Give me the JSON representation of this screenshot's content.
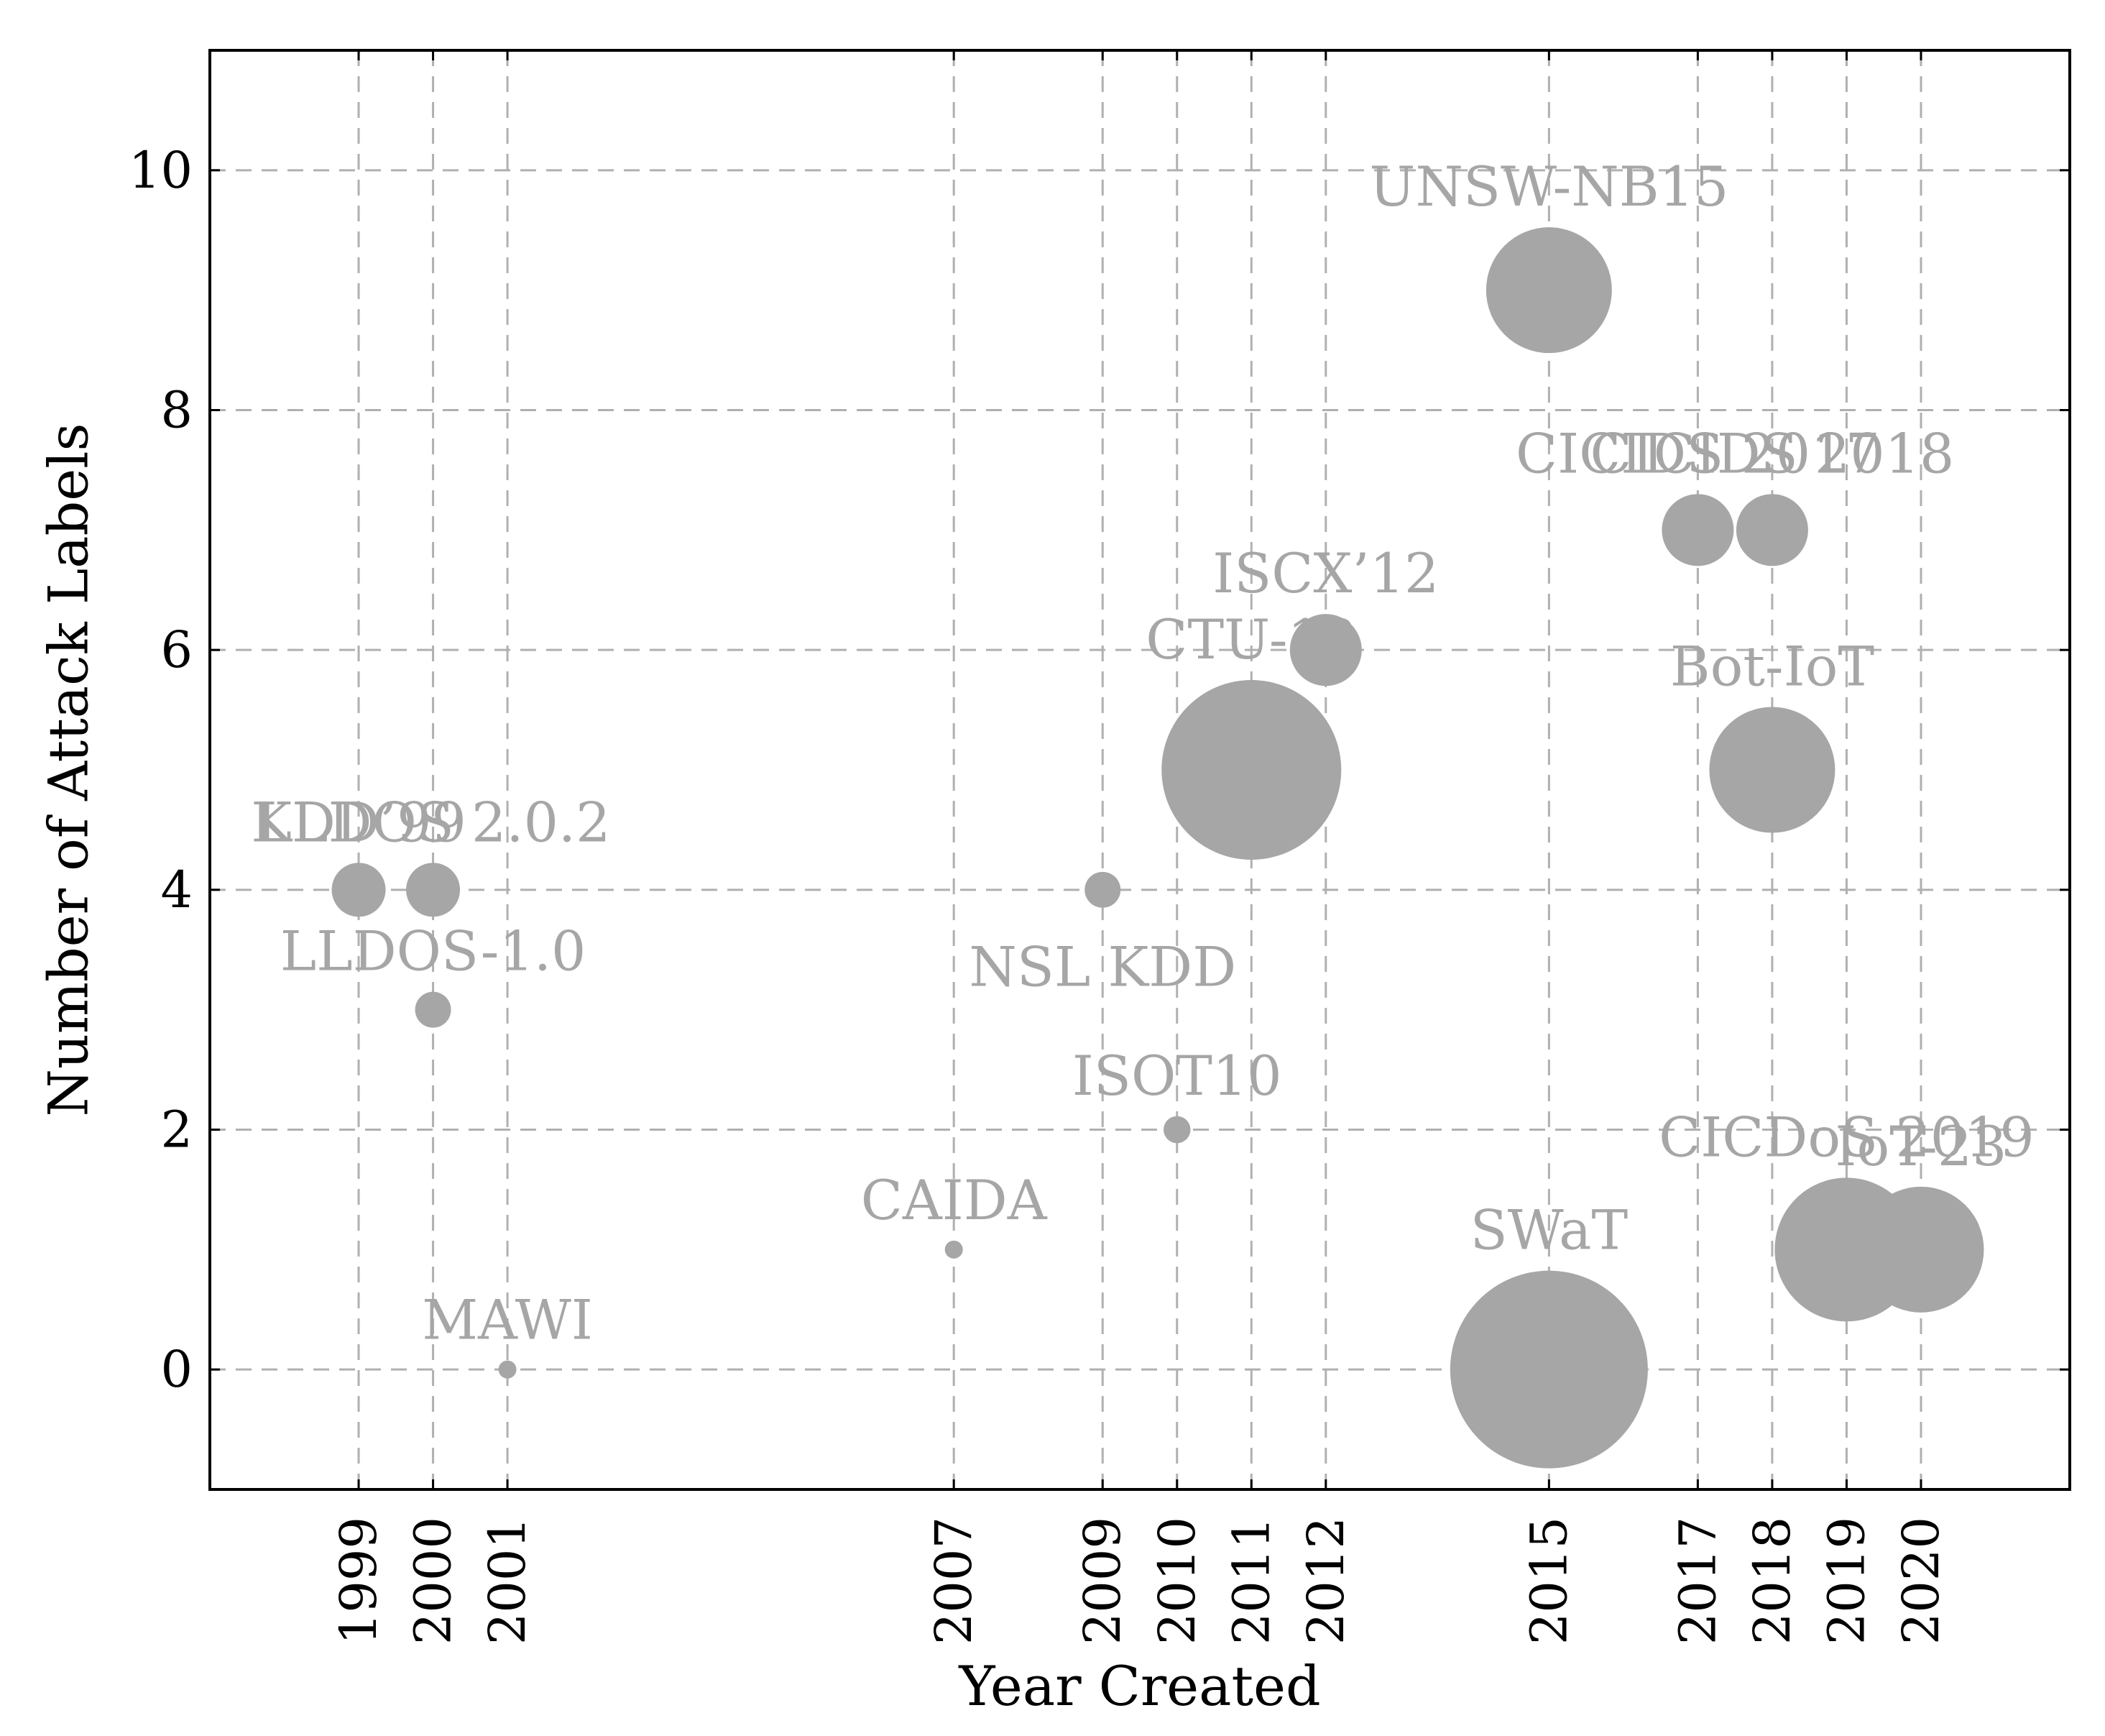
{
  "chart_data": {
    "type": "scatter",
    "xlabel": "Year Created",
    "ylabel": "Number of Attack Labels",
    "xlim": [
      1997,
      2022
    ],
    "ylim": [
      -1,
      11
    ],
    "x_ticks": [
      1999,
      2000,
      2001,
      2007,
      2009,
      2010,
      2011,
      2012,
      2015,
      2017,
      2018,
      2019,
      2020
    ],
    "y_ticks": [
      0,
      2,
      4,
      6,
      8,
      10
    ],
    "grid": true,
    "colors": {
      "point": "#a6a6a6",
      "label": "#a6a6a6",
      "grid": "#b0b0b0"
    },
    "points": [
      {
        "name": "KDD’99",
        "x": 1999,
        "y": 4,
        "size": 3,
        "label_pos": "above"
      },
      {
        "name": "LLDOS 2.0.2",
        "x": 2000,
        "y": 4,
        "size": 3,
        "label_pos": "above"
      },
      {
        "name": "LLDOS-1.0",
        "x": 2000,
        "y": 3,
        "size": 2,
        "label_pos": "above"
      },
      {
        "name": "MAWI",
        "x": 2001,
        "y": 0,
        "size": 1,
        "label_pos": "above"
      },
      {
        "name": "CAIDA",
        "x": 2007,
        "y": 1,
        "size": 1,
        "label_pos": "above"
      },
      {
        "name": "NSL KDD",
        "x": 2009,
        "y": 4,
        "size": 2,
        "label_pos": "below"
      },
      {
        "name": "ISOT10",
        "x": 2010,
        "y": 2,
        "size": 1.5,
        "label_pos": "above"
      },
      {
        "name": "CTU-13",
        "x": 2011,
        "y": 5,
        "size": 10,
        "label_pos": "above"
      },
      {
        "name": "ISCX’12",
        "x": 2012,
        "y": 6,
        "size": 4,
        "label_pos": "above"
      },
      {
        "name": "UNSW-NB15",
        "x": 2015,
        "y": 9,
        "size": 7,
        "label_pos": "above"
      },
      {
        "name": "SWaT",
        "x": 2015,
        "y": 0,
        "size": 11,
        "label_pos": "above"
      },
      {
        "name": "CICIDS 2017",
        "x": 2017,
        "y": 7,
        "size": 4,
        "label_pos": "above"
      },
      {
        "name": "CICIDS 2018",
        "x": 2018,
        "y": 7,
        "size": 4,
        "label_pos": "above"
      },
      {
        "name": "Bot-IoT",
        "x": 2018,
        "y": 5,
        "size": 7,
        "label_pos": "above"
      },
      {
        "name": "CICDoS 2019",
        "x": 2019,
        "y": 1,
        "size": 8,
        "label_pos": "above"
      },
      {
        "name": "IoT-23",
        "x": 2020,
        "y": 1,
        "size": 7,
        "label_pos": "above"
      }
    ]
  }
}
